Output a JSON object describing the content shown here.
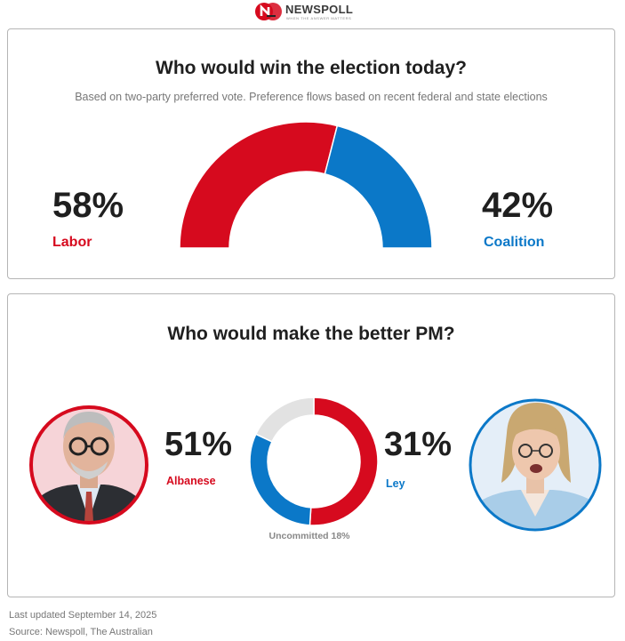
{
  "header": {
    "brand": "NEWSPOLL",
    "tagline": "WHEN THE ANSWER MATTERS"
  },
  "colors": {
    "labor": "#d60a1e",
    "coalition": "#0b78c8",
    "uncommitted": "#e2e2e2"
  },
  "election": {
    "title": "Who would win the election today?",
    "subtitle": "Based on two-party preferred vote. Preference flows based on recent federal and state elections",
    "left_pct": "58%",
    "left_label": "Labor",
    "right_pct": "42%",
    "right_label": "Coalition"
  },
  "pm": {
    "title": "Who would make the better PM?",
    "left_pct": "51%",
    "left_label": "Albanese",
    "right_pct": "31%",
    "right_label": "Ley",
    "uncommitted_label": "Uncommitted 18%"
  },
  "chart_data": [
    {
      "type": "pie",
      "variant": "half-donut",
      "title": "Who would win the election today?",
      "categories": [
        "Labor",
        "Coalition"
      ],
      "values": [
        58,
        42
      ]
    },
    {
      "type": "pie",
      "variant": "donut",
      "title": "Who would make the better PM?",
      "categories": [
        "Albanese",
        "Ley",
        "Uncommitted"
      ],
      "values": [
        51,
        31,
        18
      ]
    }
  ],
  "footer": {
    "updated": "Last updated September 14, 2025",
    "source": "Source: Newspoll, The Australian"
  }
}
